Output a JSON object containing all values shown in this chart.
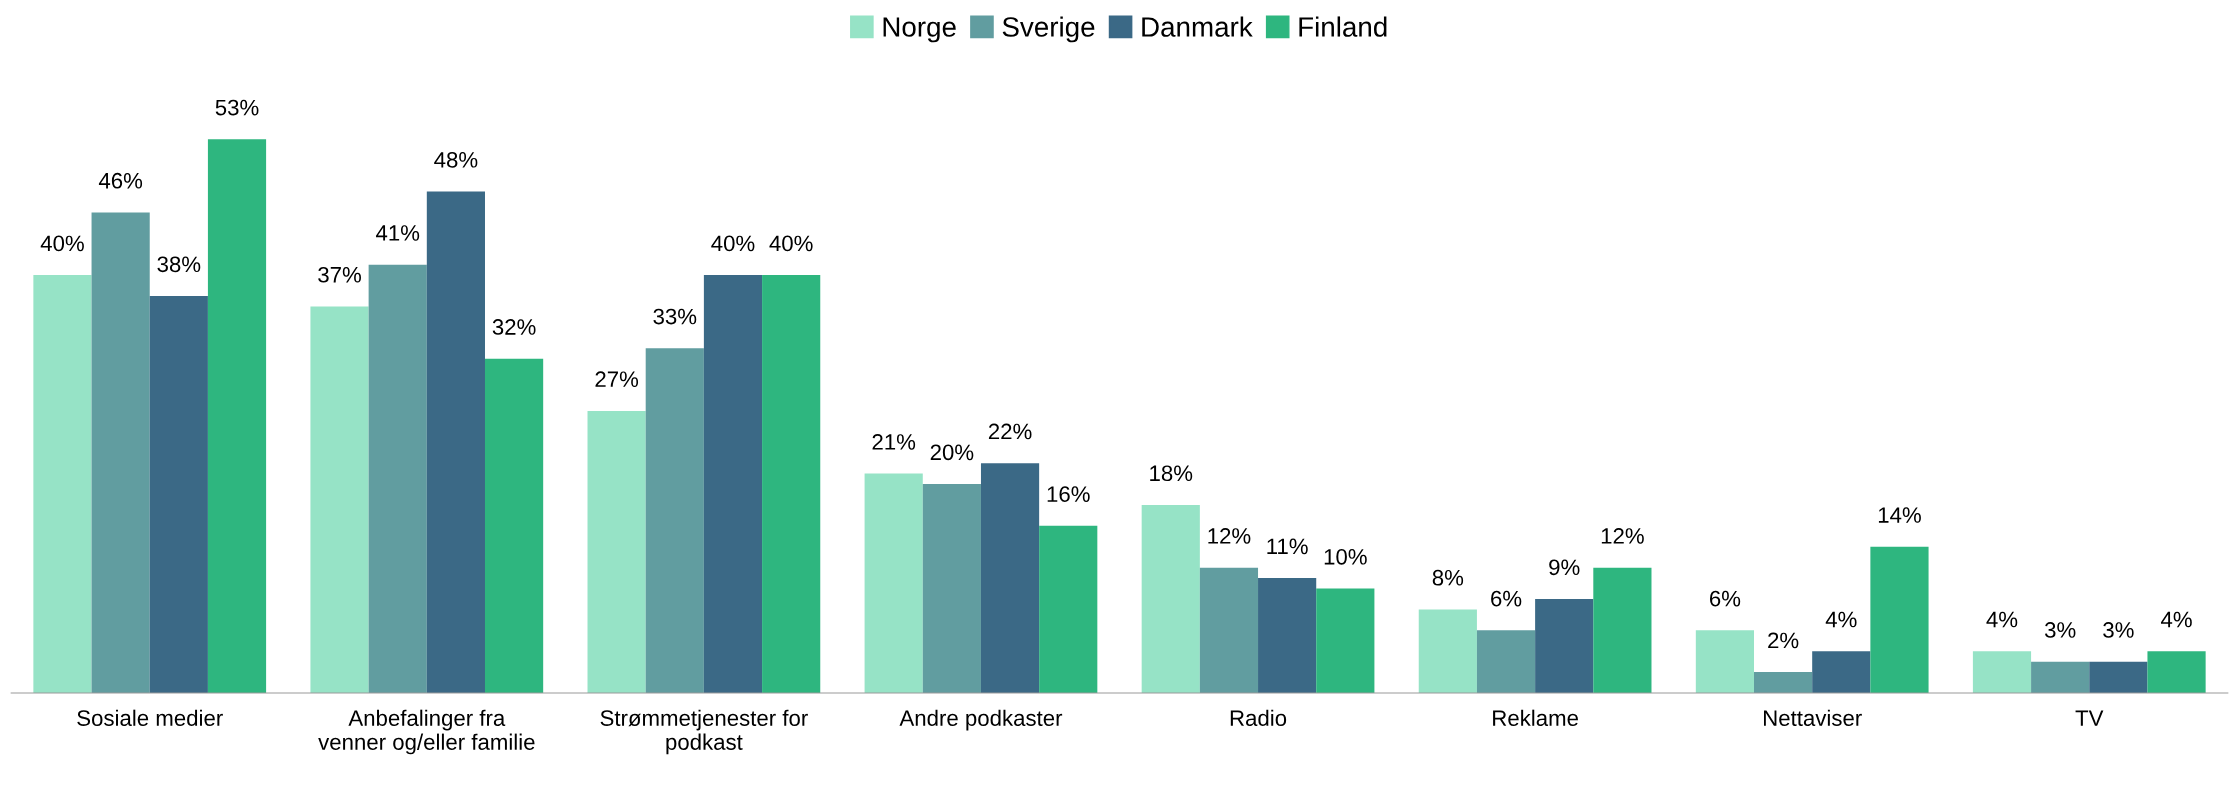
{
  "chart_data": {
    "type": "bar",
    "categories": [
      "Sosiale medier",
      "Anbefalinger fra\nvenner og/eller familie",
      "Strømmetjenester for\npodkast",
      "Andre podkaster",
      "Radio",
      "Reklame",
      "Nettaviser",
      "TV"
    ],
    "series": [
      {
        "name": "Norge",
        "color": "#96e3c6",
        "values": [
          40,
          37,
          27,
          21,
          18,
          8,
          6,
          4
        ],
        "value_labels": [
          "40%",
          "37%",
          "27%",
          "21%",
          "18%",
          "8%",
          "6%",
          "4%"
        ]
      },
      {
        "name": "Sverige",
        "color": "#619da0",
        "values": [
          46,
          41,
          33,
          20,
          12,
          6,
          2,
          3
        ],
        "value_labels": [
          "46%",
          "41%",
          "33%",
          "20%",
          "12%",
          "6%",
          "2%",
          "3%"
        ]
      },
      {
        "name": "Danmark",
        "color": "#3b6986",
        "values": [
          38,
          48,
          40,
          22,
          11,
          9,
          4,
          3
        ],
        "value_labels": [
          "38%",
          "48%",
          "40%",
          "22%",
          "11%",
          "9%",
          "4%",
          "3%"
        ]
      },
      {
        "name": "Finland",
        "color": "#2eb67f",
        "values": [
          53,
          32,
          40,
          16,
          10,
          12,
          14,
          4
        ],
        "value_labels": [
          "53%",
          "32%",
          "40%",
          "16%",
          "10%",
          "12%",
          "14%",
          "4%"
        ]
      }
    ],
    "legend": "top",
    "grid": false,
    "tick_labels": "x"
  }
}
